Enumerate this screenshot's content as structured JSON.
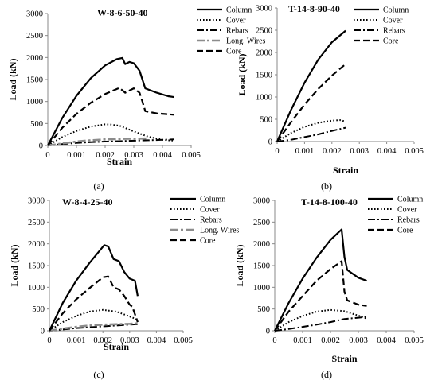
{
  "chart_data": [
    {
      "type": "line",
      "panel_label": "(a)",
      "title": "W-8-6-50-40",
      "xlabel": "Strain",
      "ylabel": "Load (kN)",
      "xlim": [
        0,
        0.005
      ],
      "ylim": [
        0,
        3000
      ],
      "xticks": [
        "0",
        "0.001",
        "0.002",
        "0.003",
        "0.004",
        "0.005"
      ],
      "yticks": [
        "0",
        "500",
        "1000",
        "1500",
        "2000",
        "2500",
        "3000"
      ],
      "legend_position": "top-right",
      "series": [
        {
          "name": "Column",
          "style": "solid",
          "x": [
            0,
            0.0005,
            0.001,
            0.0015,
            0.002,
            0.0024,
            0.0026,
            0.0027,
            0.00285,
            0.003,
            0.0032,
            0.0033,
            0.0034,
            0.0038,
            0.0042,
            0.0044
          ],
          "y": [
            0,
            620,
            1130,
            1530,
            1820,
            1960,
            1990,
            1850,
            1900,
            1870,
            1700,
            1500,
            1300,
            1200,
            1120,
            1100
          ]
        },
        {
          "name": "Cover",
          "style": "dotted",
          "x": [
            0,
            0.0005,
            0.001,
            0.0015,
            0.002,
            0.0022,
            0.0025,
            0.003,
            0.0035,
            0.004,
            0.0044
          ],
          "y": [
            0,
            190,
            330,
            430,
            480,
            475,
            450,
            320,
            200,
            130,
            110
          ]
        },
        {
          "name": "Rebars",
          "style": "dashdot",
          "x": [
            0,
            0.0005,
            0.001,
            0.0015,
            0.002,
            0.0025,
            0.003,
            0.0035,
            0.004,
            0.0044
          ],
          "y": [
            0,
            30,
            60,
            75,
            90,
            100,
            110,
            120,
            130,
            140
          ]
        },
        {
          "name": "Long. Wires",
          "style": "longdash-gray",
          "x": [
            0,
            0.001,
            0.0015,
            0.002,
            0.0025,
            0.003,
            0.0035
          ],
          "y": [
            0,
            90,
            120,
            140,
            150,
            155,
            160
          ]
        },
        {
          "name": "Core",
          "style": "dashed",
          "x": [
            0,
            0.0005,
            0.001,
            0.0015,
            0.002,
            0.0025,
            0.0027,
            0.003,
            0.0032,
            0.0033,
            0.0034,
            0.0038,
            0.0044
          ],
          "y": [
            0,
            400,
            720,
            970,
            1170,
            1310,
            1200,
            1300,
            1200,
            1000,
            780,
            730,
            700
          ]
        }
      ]
    },
    {
      "type": "line",
      "panel_label": "(b)",
      "title": "T-14-8-90-40",
      "xlabel": "Strain",
      "ylabel": "Load (kN)",
      "xlim": [
        0,
        0.005
      ],
      "ylim": [
        0,
        3000
      ],
      "xticks": [
        "0",
        "0.001",
        "0.002",
        "0.003",
        "0.004",
        "0.005"
      ],
      "yticks": [
        "0",
        "500",
        "1000",
        "1500",
        "2000",
        "2500",
        "3000"
      ],
      "legend_position": "top-right",
      "series": [
        {
          "name": "Column",
          "style": "solid",
          "x": [
            0,
            0.0005,
            0.001,
            0.0015,
            0.002,
            0.0025
          ],
          "y": [
            0,
            700,
            1320,
            1840,
            2230,
            2490
          ]
        },
        {
          "name": "Cover",
          "style": "dotted",
          "x": [
            0,
            0.0005,
            0.001,
            0.0015,
            0.002,
            0.0023,
            0.0025
          ],
          "y": [
            0,
            190,
            330,
            420,
            470,
            480,
            450
          ]
        },
        {
          "name": "Rebars",
          "style": "dashdot",
          "x": [
            0,
            0.0005,
            0.001,
            0.0015,
            0.002,
            0.0025
          ],
          "y": [
            0,
            40,
            100,
            160,
            240,
            310
          ]
        },
        {
          "name": "Core",
          "style": "dashed",
          "x": [
            0,
            0.0005,
            0.001,
            0.0015,
            0.002,
            0.0025
          ],
          "y": [
            0,
            430,
            830,
            1180,
            1480,
            1740
          ]
        }
      ]
    },
    {
      "type": "line",
      "panel_label": "(c)",
      "title": "W-8-4-25-40",
      "xlabel": "Strain",
      "ylabel": "Load (kN)",
      "xlim": [
        0,
        0.005
      ],
      "ylim": [
        0,
        3000
      ],
      "xticks": [
        "0",
        "0.001",
        "0.002",
        "0.003",
        "0.004",
        "0.005"
      ],
      "yticks": [
        "0",
        "500",
        "1000",
        "1500",
        "2000",
        "2500",
        "3000"
      ],
      "legend_position": "top-right",
      "series": [
        {
          "name": "Column",
          "style": "solid",
          "x": [
            0,
            0.0005,
            0.001,
            0.0015,
            0.00205,
            0.0022,
            0.0024,
            0.0026,
            0.0028,
            0.003,
            0.0032,
            0.0033
          ],
          "y": [
            0,
            640,
            1150,
            1560,
            1970,
            1940,
            1650,
            1600,
            1350,
            1200,
            1150,
            800
          ]
        },
        {
          "name": "Cover",
          "style": "dotted",
          "x": [
            0,
            0.0005,
            0.001,
            0.0015,
            0.002,
            0.0025,
            0.003,
            0.0033
          ],
          "y": [
            0,
            200,
            340,
            440,
            480,
            440,
            330,
            250
          ]
        },
        {
          "name": "Rebars",
          "style": "dashdot",
          "x": [
            0,
            0.0005,
            0.001,
            0.0015,
            0.002,
            0.0025,
            0.003,
            0.0033
          ],
          "y": [
            0,
            30,
            60,
            80,
            100,
            120,
            140,
            150
          ]
        },
        {
          "name": "Long. Wires",
          "style": "longdash-gray",
          "x": [
            0,
            0.0005,
            0.001,
            0.0015,
            0.002,
            0.0025,
            0.003,
            0.0033
          ],
          "y": [
            0,
            50,
            90,
            120,
            140,
            150,
            160,
            170
          ]
        },
        {
          "name": "Core",
          "style": "dashed",
          "x": [
            0,
            0.0005,
            0.001,
            0.0015,
            0.002,
            0.0022,
            0.0024,
            0.0026,
            0.0028,
            0.003,
            0.0031,
            0.0033
          ],
          "y": [
            0,
            400,
            720,
            980,
            1230,
            1250,
            1000,
            950,
            800,
            600,
            550,
            200
          ]
        }
      ]
    },
    {
      "type": "line",
      "panel_label": "(d)",
      "title": "T-14-8-100-40",
      "xlabel": "Strain",
      "ylabel": "Load (kN)",
      "xlim": [
        0,
        0.005
      ],
      "ylim": [
        0,
        3000
      ],
      "xticks": [
        "0",
        "0.001",
        "0.002",
        "0.003",
        "0.004",
        "0.005"
      ],
      "yticks": [
        "0",
        "500",
        "1000",
        "1500",
        "2000",
        "2500",
        "3000"
      ],
      "legend_position": "top-right",
      "series": [
        {
          "name": "Column",
          "style": "solid",
          "x": [
            0,
            0.0005,
            0.001,
            0.0015,
            0.002,
            0.0024,
            0.0025,
            0.0026,
            0.003,
            0.0033
          ],
          "y": [
            0,
            640,
            1200,
            1680,
            2090,
            2330,
            1700,
            1400,
            1220,
            1150
          ]
        },
        {
          "name": "Cover",
          "style": "dotted",
          "x": [
            0,
            0.0005,
            0.001,
            0.0015,
            0.002,
            0.0025,
            0.003,
            0.0033
          ],
          "y": [
            0,
            200,
            340,
            440,
            480,
            450,
            350,
            280
          ]
        },
        {
          "name": "Rebars",
          "style": "dashdot",
          "x": [
            0,
            0.0005,
            0.001,
            0.0015,
            0.002,
            0.0025,
            0.003,
            0.0033
          ],
          "y": [
            0,
            40,
            90,
            140,
            200,
            270,
            300,
            320
          ]
        },
        {
          "name": "Core",
          "style": "dashed",
          "x": [
            0,
            0.0005,
            0.001,
            0.0015,
            0.002,
            0.0024,
            0.0025,
            0.0026,
            0.003,
            0.0033
          ],
          "y": [
            0,
            440,
            800,
            1150,
            1420,
            1600,
            900,
            700,
            600,
            570
          ]
        }
      ]
    }
  ]
}
